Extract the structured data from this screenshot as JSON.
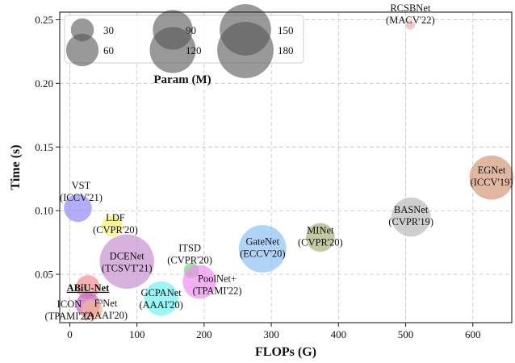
{
  "chart_data": {
    "type": "scatter",
    "xlabel": "FLOPs (G)",
    "ylabel": "Time (s)",
    "xlim": [
      -15,
      658
    ],
    "ylim": [
      0.012,
      0.256
    ],
    "x_ticks": [
      0,
      100,
      200,
      300,
      400,
      500,
      600
    ],
    "y_ticks": [
      0.05,
      0.1,
      0.15,
      0.2,
      0.25
    ],
    "x_tick_labels": [
      "0",
      "100",
      "200",
      "300",
      "400",
      "500",
      "600"
    ],
    "y_tick_labels": [
      "0.05",
      "0.10",
      "0.15",
      "0.20",
      "0.25"
    ],
    "grid": true,
    "bubble_size": "Param (M)",
    "legend": {
      "title": "Param (M)",
      "placement": "top-left",
      "entries": [
        {
          "size": 30,
          "label": "30"
        },
        {
          "size": 60,
          "label": "60"
        },
        {
          "size": 90,
          "label": "90"
        },
        {
          "size": 120,
          "label": "120"
        },
        {
          "size": 150,
          "label": "150"
        },
        {
          "size": 180,
          "label": "180"
        }
      ]
    },
    "points": [
      {
        "name": "RCSBNet",
        "venue": "(MACV'22)",
        "x": 507,
        "y": 0.246,
        "size": 5,
        "color": "#f4b0b0",
        "highlight": false,
        "label_lines": [
          "RCSBNet",
          "(MACV'22)"
        ]
      },
      {
        "name": "EGNet",
        "venue": "(ICCV'19)",
        "x": 628,
        "y": 0.126,
        "size": 111,
        "color": "#d4987a",
        "highlight": false,
        "label_lines": [
          "EGNet",
          "(ICCV'19)"
        ]
      },
      {
        "name": "BASNet",
        "venue": "(CVPR'19)",
        "x": 508,
        "y": 0.095,
        "size": 87,
        "color": "#bbbbbb",
        "highlight": false,
        "label_lines": [
          "BASNet",
          "(CVPR'19)"
        ]
      },
      {
        "name": "MINet",
        "venue": "(CVPR'20)",
        "x": 373,
        "y": 0.079,
        "size": 47,
        "color": "#a7b37a",
        "highlight": false,
        "label_lines": [
          "MINet",
          "(CVPR'20)"
        ]
      },
      {
        "name": "GateNet",
        "venue": "(ECCV'20)",
        "x": 287,
        "y": 0.07,
        "size": 128,
        "color": "#8ec1f5",
        "highlight": false,
        "label_lines": [
          "GateNet",
          "(ECCV'20)"
        ]
      },
      {
        "name": "VST",
        "venue": "(ICCV'21)",
        "x": 12,
        "y": 0.102,
        "size": 44,
        "color": "#8f8bf3",
        "highlight": false,
        "label_lines": [
          "VST",
          "(ICCV'21)"
        ]
      },
      {
        "name": "LDF",
        "venue": "(CVPR'20)",
        "x": 63,
        "y": 0.088,
        "size": 25,
        "color": "#f8f06e",
        "highlight": false,
        "label_lines": [
          "LDF",
          "(CVPR'20)"
        ]
      },
      {
        "name": "DCENet",
        "venue": "(TCSVT'21)",
        "x": 85,
        "y": 0.06,
        "size": 168,
        "color": "#c792d0",
        "highlight": false,
        "label_lines": [
          "DCENet",
          "(TCSVT'21)"
        ]
      },
      {
        "name": "ITSD",
        "venue": "(CVPR'20)",
        "x": 181,
        "y": 0.053,
        "size": 13,
        "color": "#7fc97f",
        "highlight": false,
        "label_lines": [
          "ITSD",
          "(CVPR'20)"
        ]
      },
      {
        "name": "PoolNet+",
        "venue": "(TPAMI'22)",
        "x": 193,
        "y": 0.044,
        "size": 64,
        "color": "#ee8ef0",
        "highlight": false,
        "label_lines": [
          "PoolNet+",
          "(TPAMI'22)"
        ]
      },
      {
        "name": "GCPANet",
        "venue": "(AAAI'20)",
        "x": 136,
        "y": 0.031,
        "size": 67,
        "color": "#72f2f2",
        "highlight": false,
        "label_lines": [
          "GCPANet",
          "(AAAI'20)"
        ]
      },
      {
        "name": "ABiU-Net",
        "venue": "",
        "x": 27,
        "y": 0.04,
        "size": 32,
        "color": "#f38d8d",
        "highlight": true,
        "label_lines": [
          "ABiU-Net"
        ]
      },
      {
        "name": "ICON",
        "venue": "(TPAMI'22)",
        "x": 27,
        "y": 0.026,
        "size": 34,
        "color": "#c567c7",
        "highlight": false,
        "label_lines": [
          "ICON",
          "(TPAMI'22)"
        ]
      },
      {
        "name": "F³Net",
        "venue": "(AAAI'20)",
        "x": 33,
        "y": 0.022,
        "size": 25,
        "color": "#f5b58e",
        "highlight": false,
        "label_lines": [
          "F³Net",
          "(AAAI'20)"
        ]
      }
    ]
  }
}
